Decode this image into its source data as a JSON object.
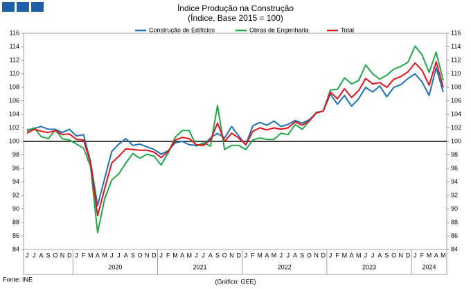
{
  "chart_data": {
    "type": "line",
    "title": "Índice Produção na Construção",
    "subtitle": "(Índice, Base 2015 = 100)",
    "source": "Fonte: INE",
    "credit": "(Gráfico: GEE)",
    "categories": [
      "J",
      "J",
      "A",
      "S",
      "O",
      "N",
      "D",
      "J",
      "F",
      "M",
      "A",
      "M",
      "J",
      "J",
      "A",
      "S",
      "O",
      "N",
      "D",
      "J",
      "F",
      "M",
      "A",
      "M",
      "J",
      "J",
      "A",
      "S",
      "O",
      "N",
      "D",
      "J",
      "F",
      "M",
      "A",
      "M",
      "J",
      "J",
      "A",
      "S",
      "O",
      "N",
      "D",
      "J",
      "F",
      "M",
      "A",
      "M",
      "J",
      "J",
      "A",
      "S",
      "O",
      "N",
      "D",
      "J",
      "F",
      "M",
      "A",
      "M"
    ],
    "year_labels": [
      "2020",
      "2021",
      "2022",
      "2023",
      "2024"
    ],
    "ylim": [
      84,
      116
    ],
    "yticks": [
      84,
      86,
      88,
      90,
      92,
      94,
      96,
      98,
      100,
      102,
      104,
      106,
      108,
      110,
      112,
      114,
      116
    ],
    "hline": 100,
    "series": [
      {
        "name": "Construção de Edifícios",
        "color": "#1f6fb4",
        "values": [
          101.7,
          101.9,
          102.2,
          101.8,
          101.8,
          101.3,
          101.8,
          100.8,
          101.0,
          97.0,
          90.5,
          94.5,
          98.5,
          99.6,
          100.4,
          99.4,
          99.6,
          99.2,
          98.8,
          98.1,
          98.6,
          99.8,
          100.0,
          99.5,
          99.4,
          99.5,
          100.5,
          101.2,
          100.5,
          102.2,
          100.8,
          99.5,
          102.3,
          102.8,
          102.4,
          103.0,
          102.2,
          102.5,
          103.1,
          102.7,
          103.2,
          104.2,
          104.5,
          107.0,
          105.5,
          106.8,
          105.2,
          106.3,
          108.0,
          107.3,
          108.2,
          106.6,
          108.0,
          108.4,
          109.3,
          110.0,
          108.8,
          106.8,
          110.9,
          107.3
        ]
      },
      {
        "name": "Obras de Engenharia",
        "color": "#21a64a",
        "values": [
          101.5,
          102.0,
          100.7,
          100.4,
          101.7,
          100.4,
          100.2,
          99.6,
          99.0,
          96.3,
          86.5,
          91.5,
          94.3,
          95.2,
          96.8,
          98.2,
          97.5,
          98.1,
          97.8,
          96.5,
          98.3,
          100.6,
          101.6,
          101.6,
          99.3,
          99.8,
          99.3,
          105.3,
          98.8,
          99.4,
          99.4,
          98.8,
          100.2,
          100.5,
          100.3,
          100.3,
          101.2,
          101.0,
          102.5,
          101.8,
          103.0,
          104.3,
          104.5,
          107.6,
          107.7,
          109.4,
          108.5,
          109.0,
          111.3,
          110.0,
          109.2,
          109.8,
          110.7,
          111.1,
          111.7,
          114.1,
          112.8,
          110.2,
          113.2,
          109.0
        ]
      },
      {
        "name": "Total",
        "color": "#e3121b",
        "values": [
          101.2,
          101.8,
          101.5,
          101.3,
          101.6,
          101.0,
          101.1,
          100.3,
          100.2,
          96.8,
          89.0,
          93.0,
          96.8,
          97.8,
          98.9,
          98.8,
          98.7,
          98.7,
          98.4,
          97.6,
          98.5,
          100.2,
          100.6,
          100.4,
          99.5,
          99.4,
          100.2,
          102.7,
          100.0,
          101.2,
          100.5,
          99.5,
          101.5,
          102.0,
          101.7,
          102.0,
          101.8,
          102.0,
          102.9,
          102.4,
          103.0,
          104.2,
          104.5,
          107.3,
          106.3,
          107.8,
          106.5,
          107.5,
          109.3,
          108.5,
          108.7,
          108.0,
          109.2,
          109.6,
          110.3,
          111.6,
          110.5,
          108.3,
          111.8,
          108.0
        ]
      }
    ]
  }
}
